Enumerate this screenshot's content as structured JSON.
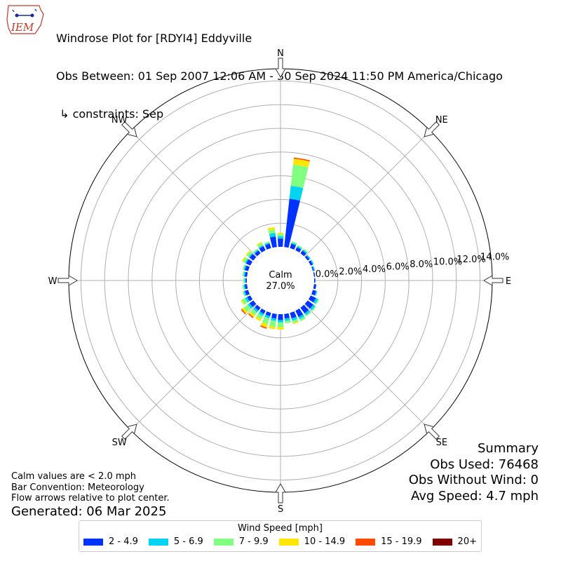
{
  "header": {
    "logo_text": "IEM",
    "title_line1": "Windrose Plot for [RDYI4] Eddyville",
    "title_line2": "Obs Between: 01 Sep 2007 12:06 AM - 30 Sep 2024 11:50 PM America/Chicago",
    "title_line3": " ↳ constraints: Sep"
  },
  "notes": {
    "calm_note": "Calm values are < 2.0 mph",
    "convention": "Bar Convention: Meteorology",
    "flow": "Flow arrows relative to plot center.",
    "generated": "Generated: 06 Mar 2025"
  },
  "summary": {
    "heading": "Summary",
    "obs_used": "Obs Used: 76468",
    "obs_without_wind": "Obs Without Wind: 0",
    "avg_speed": "Avg Speed: 4.7 mph"
  },
  "chart_data": {
    "type": "windrose",
    "calm_label": "Calm",
    "calm_value": "27.0%",
    "radial_ticks": [
      "0.0%",
      "2.0%",
      "4.0%",
      "6.0%",
      "8.0%",
      "10.0%",
      "12.0%",
      "14.0%"
    ],
    "directions": [
      "N",
      "NE",
      "E",
      "SE",
      "S",
      "SW",
      "W",
      "NW"
    ],
    "legend_title": "Wind Speed [mph]",
    "bins": [
      {
        "label": "2 - 4.9",
        "color": "#0033ff"
      },
      {
        "label": "5 - 6.9",
        "color": "#00d4f0"
      },
      {
        "label": "7 - 9.9",
        "color": "#80ff80"
      },
      {
        "label": "10 - 14.9",
        "color": "#ffe600"
      },
      {
        "label": "15 - 19.9",
        "color": "#ff4a00"
      },
      {
        "label": "20+",
        "color": "#800000"
      }
    ],
    "sectors": [
      {
        "dir": 0,
        "values": [
          0.7,
          0.2,
          0.2,
          0.1,
          0.0,
          0.0
        ]
      },
      {
        "dir": 10,
        "values": [
          4.1,
          1.1,
          1.8,
          0.5,
          0.1,
          0.0
        ]
      },
      {
        "dir": 20,
        "values": [
          0.4,
          0.1,
          0.1,
          0.0,
          0.0,
          0.0
        ]
      },
      {
        "dir": 30,
        "values": [
          0.3,
          0.1,
          0.1,
          0.0,
          0.0,
          0.0
        ]
      },
      {
        "dir": 40,
        "values": [
          0.3,
          0.1,
          0.1,
          0.0,
          0.0,
          0.0
        ]
      },
      {
        "dir": 50,
        "values": [
          0.2,
          0.1,
          0.0,
          0.0,
          0.0,
          0.0
        ]
      },
      {
        "dir": 60,
        "values": [
          0.2,
          0.1,
          0.0,
          0.0,
          0.0,
          0.0
        ]
      },
      {
        "dir": 70,
        "values": [
          0.1,
          0.1,
          0.0,
          0.0,
          0.0,
          0.0
        ]
      },
      {
        "dir": 80,
        "values": [
          0.1,
          0.0,
          0.0,
          0.0,
          0.0,
          0.0
        ]
      },
      {
        "dir": 90,
        "values": [
          0.1,
          0.0,
          0.0,
          0.0,
          0.0,
          0.0
        ]
      },
      {
        "dir": 100,
        "values": [
          0.2,
          0.0,
          0.0,
          0.0,
          0.0,
          0.0
        ]
      },
      {
        "dir": 110,
        "values": [
          0.3,
          0.1,
          0.0,
          0.0,
          0.0,
          0.0
        ]
      },
      {
        "dir": 120,
        "values": [
          0.5,
          0.2,
          0.1,
          0.0,
          0.0,
          0.0
        ]
      },
      {
        "dir": 130,
        "values": [
          0.6,
          0.2,
          0.1,
          0.0,
          0.0,
          0.0
        ]
      },
      {
        "dir": 140,
        "values": [
          0.6,
          0.2,
          0.1,
          0.0,
          0.0,
          0.0
        ]
      },
      {
        "dir": 150,
        "values": [
          0.6,
          0.2,
          0.2,
          0.0,
          0.0,
          0.0
        ]
      },
      {
        "dir": 160,
        "values": [
          0.5,
          0.2,
          0.2,
          0.1,
          0.0,
          0.0
        ]
      },
      {
        "dir": 170,
        "values": [
          0.4,
          0.2,
          0.2,
          0.0,
          0.0,
          0.0
        ]
      },
      {
        "dir": 180,
        "values": [
          0.5,
          0.2,
          0.4,
          0.2,
          0.0,
          0.0
        ]
      },
      {
        "dir": 190,
        "values": [
          0.4,
          0.2,
          0.5,
          0.2,
          0.0,
          0.0
        ]
      },
      {
        "dir": 200,
        "values": [
          0.3,
          0.2,
          0.5,
          0.3,
          0.1,
          0.0
        ]
      },
      {
        "dir": 210,
        "values": [
          0.3,
          0.2,
          0.3,
          0.2,
          0.0,
          0.0
        ]
      },
      {
        "dir": 220,
        "values": [
          0.3,
          0.2,
          0.3,
          0.2,
          0.1,
          0.0
        ]
      },
      {
        "dir": 230,
        "values": [
          0.4,
          0.2,
          0.4,
          0.2,
          0.1,
          0.0
        ]
      },
      {
        "dir": 240,
        "values": [
          0.3,
          0.2,
          0.3,
          0.1,
          0.0,
          0.0
        ]
      },
      {
        "dir": 250,
        "values": [
          0.3,
          0.1,
          0.1,
          0.0,
          0.0,
          0.0
        ]
      },
      {
        "dir": 260,
        "values": [
          0.2,
          0.1,
          0.1,
          0.0,
          0.0,
          0.0
        ]
      },
      {
        "dir": 270,
        "values": [
          0.1,
          0.1,
          0.1,
          0.0,
          0.0,
          0.0
        ]
      },
      {
        "dir": 280,
        "values": [
          0.2,
          0.1,
          0.1,
          0.0,
          0.0,
          0.0
        ]
      },
      {
        "dir": 290,
        "values": [
          0.3,
          0.1,
          0.1,
          0.0,
          0.0,
          0.0
        ]
      },
      {
        "dir": 300,
        "values": [
          0.4,
          0.1,
          0.2,
          0.1,
          0.0,
          0.0
        ]
      },
      {
        "dir": 310,
        "values": [
          0.4,
          0.1,
          0.2,
          0.1,
          0.0,
          0.0
        ]
      },
      {
        "dir": 320,
        "values": [
          0.3,
          0.1,
          0.1,
          0.0,
          0.0,
          0.0
        ]
      },
      {
        "dir": 330,
        "values": [
          0.4,
          0.1,
          0.2,
          0.1,
          0.0,
          0.0
        ]
      },
      {
        "dir": 340,
        "values": [
          0.4,
          0.1,
          0.1,
          0.0,
          0.0,
          0.0
        ]
      },
      {
        "dir": 350,
        "values": [
          0.9,
          0.3,
          0.3,
          0.2,
          0.0,
          0.0
        ]
      }
    ]
  }
}
